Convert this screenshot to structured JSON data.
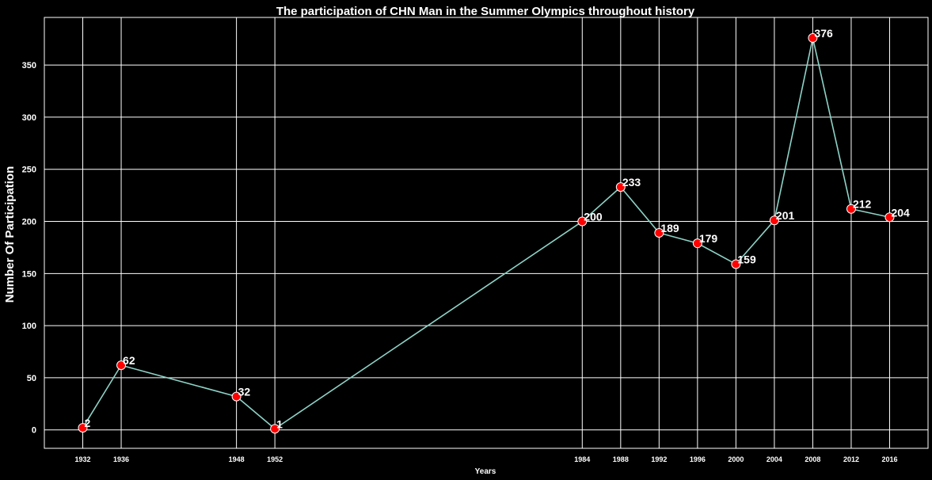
{
  "chart_data": {
    "type": "line",
    "title": "The participation of CHN Man in the Summer Olympics throughout history",
    "xlabel": "Years",
    "ylabel": "Number Of Participation",
    "x": [
      1932,
      1936,
      1948,
      1952,
      1984,
      1988,
      1992,
      1996,
      2000,
      2004,
      2008,
      2012,
      2016
    ],
    "x_tick_labels": [
      "1932",
      "1936",
      "1948",
      "1952",
      "1984",
      "1988",
      "1992",
      "1996",
      "2000",
      "2004",
      "2008",
      "2012",
      "2016"
    ],
    "series": [
      {
        "values": [
          2,
          62,
          32,
          1,
          200,
          233,
          189,
          179,
          159,
          201,
          376,
          212,
          204
        ]
      }
    ],
    "data_labels": [
      "2",
      "62",
      "32",
      "1",
      "200",
      "233",
      "189",
      "179",
      "159",
      "201",
      "376",
      "212",
      "204"
    ],
    "y_ticks": [
      0,
      50,
      100,
      150,
      200,
      250,
      300,
      350
    ],
    "y_tick_labels": [
      "0",
      "50",
      "100",
      "150",
      "200",
      "250",
      "300",
      "350"
    ],
    "xlim": [
      1928,
      2020
    ],
    "ylim": [
      -17.7,
      395.7
    ],
    "grid": true,
    "colors": {
      "background": "#000000",
      "line": "#8dd3c7",
      "marker_fill": "#ff0000",
      "marker_edge": "#ffffff",
      "text": "#ffffff",
      "grid": "#ffffff"
    }
  }
}
